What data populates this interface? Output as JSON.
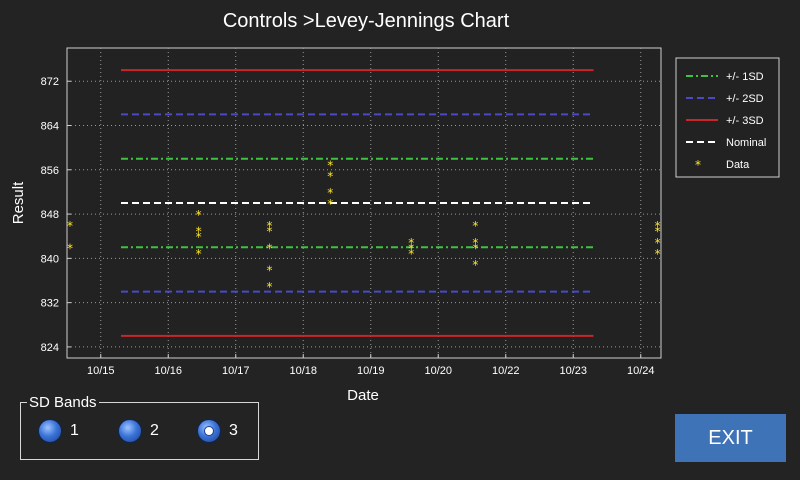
{
  "window": {
    "title": "Controls >Levey-Jennings Chart"
  },
  "chart_data": {
    "type": "line",
    "title": "Controls >Levey-Jennings Chart",
    "xlabel": "Date",
    "ylabel": "Result",
    "x_ticks": [
      "10/15",
      "10/16",
      "10/17",
      "10/18",
      "10/19",
      "10/20",
      "10/22",
      "10/23",
      "10/24"
    ],
    "x_tick_pos": [
      0.5,
      1.5,
      2.5,
      3.5,
      4.5,
      5.5,
      6.5,
      7.5,
      8.5
    ],
    "xlim": [
      0,
      8.8
    ],
    "ylim": [
      822,
      878
    ],
    "y_ticks": [
      824,
      832,
      840,
      848,
      856,
      864,
      872
    ],
    "grid": true,
    "legend_position": "right",
    "line_x_range": [
      0.8,
      7.8
    ],
    "series": [
      {
        "name": "+/- 1SD",
        "style": "dash-dot",
        "color": "#3fc23f",
        "values": [
          858,
          842
        ]
      },
      {
        "name": "+/- 2SD",
        "style": "dash",
        "color": "#4a4ac8",
        "values": [
          866,
          834
        ]
      },
      {
        "name": "+/- 3SD",
        "style": "solid",
        "color": "#c8262a",
        "values": [
          874,
          826
        ]
      },
      {
        "name": "Nominal",
        "style": "dash",
        "color": "#ffffff",
        "values": [
          850
        ]
      }
    ],
    "data_series": {
      "name": "Data",
      "color": "#ffe629",
      "points": [
        [
          0.0,
          846
        ],
        [
          0.0,
          842
        ],
        [
          1.95,
          848
        ],
        [
          1.95,
          845
        ],
        [
          1.95,
          844
        ],
        [
          1.95,
          841
        ],
        [
          3.0,
          846
        ],
        [
          3.0,
          845
        ],
        [
          3.0,
          842
        ],
        [
          3.0,
          838
        ],
        [
          3.0,
          835
        ],
        [
          3.9,
          857
        ],
        [
          3.9,
          855
        ],
        [
          3.9,
          852
        ],
        [
          3.9,
          850
        ],
        [
          5.1,
          843
        ],
        [
          5.1,
          842
        ],
        [
          5.1,
          841
        ],
        [
          6.05,
          846
        ],
        [
          6.05,
          843
        ],
        [
          6.05,
          842
        ],
        [
          6.05,
          839
        ],
        [
          8.75,
          846
        ],
        [
          8.75,
          845
        ],
        [
          8.75,
          843
        ],
        [
          8.75,
          841
        ]
      ]
    }
  },
  "sd_bands": {
    "label": "SD Bands",
    "options": [
      "1",
      "2",
      "3"
    ],
    "selected": "3"
  },
  "exit_label": "EXIT"
}
